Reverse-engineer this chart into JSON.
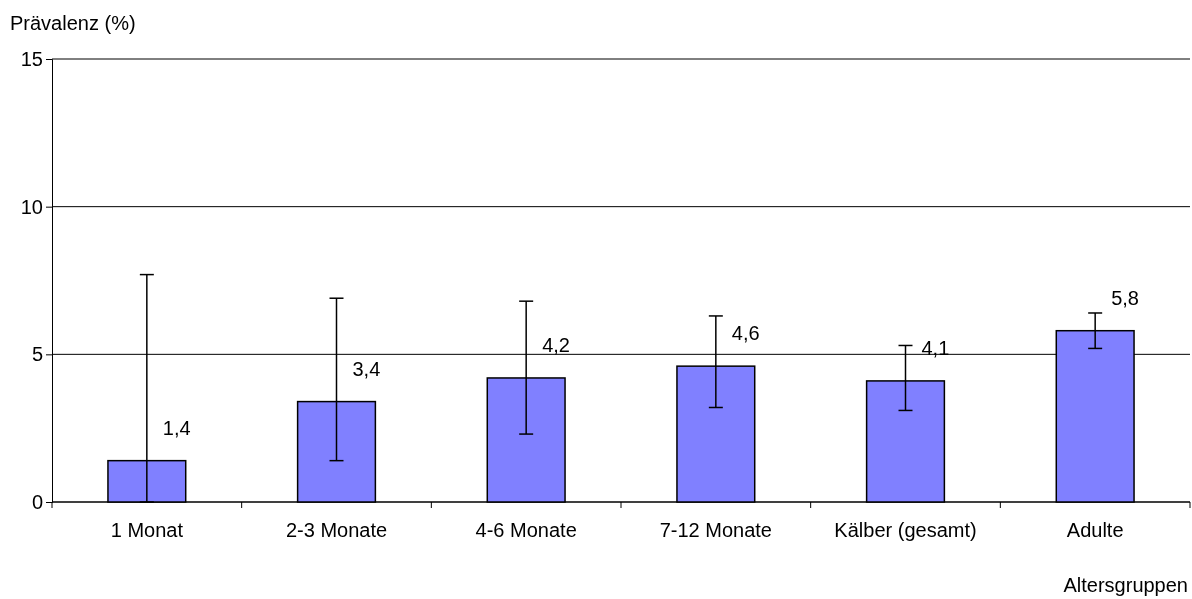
{
  "chart_data": {
    "type": "bar",
    "ylabel": "Prävalenz (%)",
    "xlabel": "Altersgruppen",
    "categories": [
      "1 Monat",
      "2-3 Monate",
      "4-6 Monate",
      "7-12 Monate",
      "Kälber (gesamt)",
      "Adulte"
    ],
    "values": [
      1.4,
      3.4,
      4.2,
      4.6,
      4.1,
      5.8
    ],
    "value_labels": [
      "1,4",
      "3,4",
      "4,2",
      "4,6",
      "4,1",
      "5,8"
    ],
    "errors": [
      [
        0,
        7.7
      ],
      [
        1.4,
        6.9
      ],
      [
        2.3,
        6.8
      ],
      [
        3.2,
        6.3
      ],
      [
        3.1,
        5.3
      ],
      [
        5.2,
        6.4
      ]
    ],
    "color": "#8080ff",
    "ylim": [
      0,
      15
    ],
    "yticks": [
      0,
      5,
      10,
      15
    ],
    "grid": "y"
  }
}
